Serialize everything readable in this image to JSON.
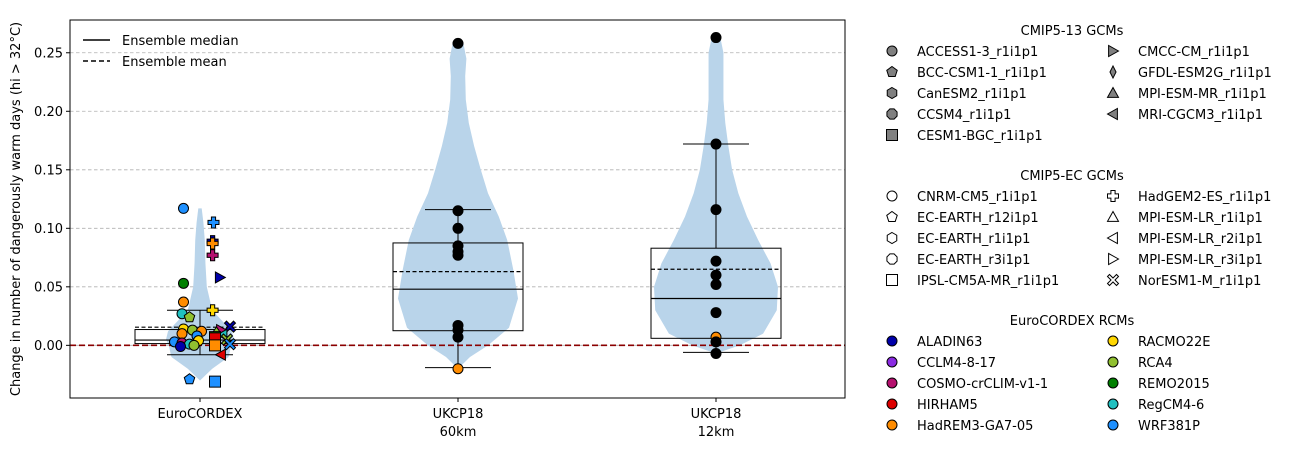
{
  "chart_data": {
    "type": "violin",
    "ylabel": "Change in number of dangerously warm days (hi > 32°C)",
    "ylim": [
      -0.045,
      0.278
    ],
    "yticks": [
      "0.00",
      "0.05",
      "0.10",
      "0.15",
      "0.20",
      "0.25"
    ],
    "ytick_values": [
      0.0,
      0.05,
      0.1,
      0.15,
      0.2,
      0.25
    ],
    "grid": "y-dashed",
    "zero_line_color": "#8b0000",
    "violin_color": "#b9d4ea",
    "categories": [
      {
        "line1": "EuroCORDEX",
        "line2": ""
      },
      {
        "line1": "UKCP18",
        "line2": "60km"
      },
      {
        "line1": "UKCP18",
        "line2": "12km"
      }
    ],
    "groups": [
      {
        "violin": [
          [
            -0.03,
            0.0
          ],
          [
            -0.02,
            0.18
          ],
          [
            -0.01,
            0.42
          ],
          [
            0.0,
            0.46
          ],
          [
            0.005,
            0.5
          ],
          [
            0.012,
            0.47
          ],
          [
            0.02,
            0.34
          ],
          [
            0.03,
            0.18
          ],
          [
            0.05,
            0.1
          ],
          [
            0.07,
            0.08
          ],
          [
            0.09,
            0.07
          ],
          [
            0.105,
            0.05
          ],
          [
            0.117,
            0.025
          ]
        ],
        "box": {
          "q1": 0.0015,
          "median": 0.0045,
          "mean": 0.0155,
          "q3": 0.0135,
          "whisker_low": -0.008,
          "whisker_high": 0.03
        },
        "points": [
          {
            "y": 0.117,
            "color": "#1e90ff",
            "marker": "circle",
            "dx": -0.55
          },
          {
            "y": 0.105,
            "color": "#1e90ff",
            "marker": "plus",
            "dx": 0.45
          },
          {
            "y": 0.089,
            "color": "#0000aa",
            "marker": "plus",
            "dx": 0.42
          },
          {
            "y": 0.087,
            "color": "#ff8c00",
            "marker": "plus",
            "dx": 0.42
          },
          {
            "y": 0.077,
            "color": "#b5106e",
            "marker": "plus",
            "dx": 0.42
          },
          {
            "y": 0.058,
            "color": "#0000aa",
            "marker": "tri-right",
            "dx": 0.66
          },
          {
            "y": 0.053,
            "color": "#008000",
            "marker": "circle",
            "dx": -0.55
          },
          {
            "y": 0.037,
            "color": "#ff8c00",
            "marker": "circle",
            "dx": -0.55
          },
          {
            "y": 0.03,
            "color": "#ffd700",
            "marker": "plus",
            "dx": 0.42
          },
          {
            "y": 0.027,
            "color": "#20c0c0",
            "marker": "circle",
            "dx": -0.6
          },
          {
            "y": 0.024,
            "color": "#90c030",
            "marker": "pentagon",
            "dx": -0.35
          },
          {
            "y": 0.016,
            "color": "#0000aa",
            "marker": "cross",
            "dx": 1.0
          },
          {
            "y": 0.014,
            "color": "#ffd700",
            "marker": "circle",
            "dx": -0.55
          },
          {
            "y": 0.013,
            "color": "#90c030",
            "marker": "circle",
            "dx": -0.25
          },
          {
            "y": 0.013,
            "color": "#b5106e",
            "marker": "tri-right",
            "dx": 0.7
          },
          {
            "y": 0.012,
            "color": "#ff8c00",
            "marker": "circle",
            "dx": 0.05
          },
          {
            "y": 0.011,
            "color": "#90c030",
            "marker": "diamond",
            "dx": 0.55
          },
          {
            "y": 0.01,
            "color": "#ff8c00",
            "marker": "circle",
            "dx": -0.6
          },
          {
            "y": 0.009,
            "color": "#20c0c0",
            "marker": "tri-left",
            "dx": 0.75
          },
          {
            "y": 0.008,
            "color": "#1e90ff",
            "marker": "circle",
            "dx": -0.1
          },
          {
            "y": 0.007,
            "color": "#008000",
            "marker": "square",
            "dx": 0.5
          },
          {
            "y": 0.006,
            "color": "#dd0000",
            "marker": "square",
            "dx": 0.5
          },
          {
            "y": 0.005,
            "color": "#90c030",
            "marker": "cross",
            "dx": 0.9
          },
          {
            "y": 0.004,
            "color": "#ffd700",
            "marker": "circle",
            "dx": -0.05
          },
          {
            "y": 0.003,
            "color": "#1e90ff",
            "marker": "circle",
            "dx": -0.85
          },
          {
            "y": 0.002,
            "color": "#b5106e",
            "marker": "circle",
            "dx": -0.6
          },
          {
            "y": 0.001,
            "color": "#20c0c0",
            "marker": "circle",
            "dx": -0.35
          },
          {
            "y": 0.001,
            "color": "#1e90ff",
            "marker": "cross",
            "dx": 1.0
          },
          {
            "y": 0.0,
            "color": "#90c030",
            "marker": "circle",
            "dx": -0.2
          },
          {
            "y": 0.0,
            "color": "#ff8c00",
            "marker": "square",
            "dx": 0.5
          },
          {
            "y": -0.001,
            "color": "#0000aa",
            "marker": "circle",
            "dx": -0.65
          },
          {
            "y": -0.008,
            "color": "#dd0000",
            "marker": "tri-left",
            "dx": 0.7
          },
          {
            "y": -0.029,
            "color": "#1e90ff",
            "marker": "pentagon",
            "dx": -0.35
          },
          {
            "y": -0.031,
            "color": "#1e90ff",
            "marker": "square",
            "dx": 0.5
          }
        ]
      },
      {
        "violin": [
          [
            -0.02,
            0.0
          ],
          [
            -0.01,
            0.2
          ],
          [
            0.0,
            0.5
          ],
          [
            0.015,
            0.85
          ],
          [
            0.04,
            1.0
          ],
          [
            0.065,
            0.92
          ],
          [
            0.09,
            0.82
          ],
          [
            0.11,
            0.68
          ],
          [
            0.13,
            0.5
          ],
          [
            0.15,
            0.38
          ],
          [
            0.17,
            0.27
          ],
          [
            0.19,
            0.18
          ],
          [
            0.21,
            0.13
          ],
          [
            0.23,
            0.12
          ],
          [
            0.245,
            0.14
          ],
          [
            0.258,
            0.09
          ]
        ],
        "box": {
          "q1": 0.0125,
          "median": 0.048,
          "mean": 0.063,
          "q3": 0.0875,
          "whisker_low": -0.019,
          "whisker_high": 0.116
        },
        "points": [
          {
            "y": 0.258,
            "color": "#000000",
            "marker": "circle",
            "dx": 0
          },
          {
            "y": 0.115,
            "color": "#000000",
            "marker": "circle",
            "dx": 0
          },
          {
            "y": 0.1,
            "color": "#000000",
            "marker": "circle",
            "dx": 0
          },
          {
            "y": 0.085,
            "color": "#000000",
            "marker": "circle",
            "dx": 0
          },
          {
            "y": 0.08,
            "color": "#000000",
            "marker": "circle",
            "dx": 0
          },
          {
            "y": 0.077,
            "color": "#000000",
            "marker": "circle",
            "dx": 0
          },
          {
            "y": 0.017,
            "color": "#000000",
            "marker": "circle",
            "dx": 0
          },
          {
            "y": 0.013,
            "color": "#000000",
            "marker": "circle",
            "dx": 0
          },
          {
            "y": 0.007,
            "color": "#000000",
            "marker": "circle",
            "dx": 0
          },
          {
            "y": -0.02,
            "color": "#ff8c00",
            "marker": "circle",
            "dx": 0
          }
        ]
      },
      {
        "violin": [
          [
            -0.007,
            0.0
          ],
          [
            0.0,
            0.38
          ],
          [
            0.01,
            0.76
          ],
          [
            0.03,
            0.98
          ],
          [
            0.05,
            1.0
          ],
          [
            0.07,
            0.88
          ],
          [
            0.09,
            0.68
          ],
          [
            0.11,
            0.5
          ],
          [
            0.13,
            0.36
          ],
          [
            0.15,
            0.26
          ],
          [
            0.17,
            0.2
          ],
          [
            0.19,
            0.15
          ],
          [
            0.21,
            0.12
          ],
          [
            0.23,
            0.12
          ],
          [
            0.25,
            0.12
          ],
          [
            0.263,
            0.07
          ]
        ],
        "box": {
          "q1": 0.006,
          "median": 0.04,
          "mean": 0.065,
          "q3": 0.083,
          "whisker_low": -0.006,
          "whisker_high": 0.172
        },
        "points": [
          {
            "y": 0.263,
            "color": "#000000",
            "marker": "circle",
            "dx": 0
          },
          {
            "y": 0.172,
            "color": "#000000",
            "marker": "circle",
            "dx": 0
          },
          {
            "y": 0.116,
            "color": "#000000",
            "marker": "circle",
            "dx": 0
          },
          {
            "y": 0.072,
            "color": "#000000",
            "marker": "circle",
            "dx": 0
          },
          {
            "y": 0.06,
            "color": "#000000",
            "marker": "circle",
            "dx": 0
          },
          {
            "y": 0.052,
            "color": "#000000",
            "marker": "circle",
            "dx": 0
          },
          {
            "y": 0.028,
            "color": "#000000",
            "marker": "circle",
            "dx": 0
          },
          {
            "y": 0.007,
            "color": "#ff8c00",
            "marker": "circle",
            "dx": 0
          },
          {
            "y": 0.003,
            "color": "#000000",
            "marker": "circle",
            "dx": 0
          },
          {
            "y": -0.007,
            "color": "#000000",
            "marker": "circle",
            "dx": 0
          }
        ]
      }
    ],
    "line_legend": [
      {
        "label": "Ensemble median",
        "style": "solid"
      },
      {
        "label": "Ensemble mean",
        "style": "dashed"
      }
    ],
    "legend_placement": "right",
    "legend_sections": [
      {
        "title": "CMIP5-13 GCMs",
        "fill": "#808080",
        "entries": [
          {
            "label": "ACCESS1-3_r1i1p1",
            "marker": "circle"
          },
          {
            "label": "BCC-CSM1-1_r1i1p1",
            "marker": "pentagon"
          },
          {
            "label": "CanESM2_r1i1p1",
            "marker": "hexagon"
          },
          {
            "label": "CCSM4_r1i1p1",
            "marker": "octagon"
          },
          {
            "label": "CESM1-BGC_r1i1p1",
            "marker": "square"
          },
          {
            "label": "CMCC-CM_r1i1p1",
            "marker": "tri-right"
          },
          {
            "label": "GFDL-ESM2G_r1i1p1",
            "marker": "thin-diamond"
          },
          {
            "label": "MPI-ESM-MR_r1i1p1",
            "marker": "tri-up"
          },
          {
            "label": "MRI-CGCM3_r1i1p1",
            "marker": "tri-left"
          }
        ]
      },
      {
        "title": "CMIP5-EC GCMs",
        "fill": "#ffffff",
        "entries": [
          {
            "label": "CNRM-CM5_r1i1p1",
            "marker": "circle"
          },
          {
            "label": "EC-EARTH_r12i1p1",
            "marker": "pentagon"
          },
          {
            "label": "EC-EARTH_r1i1p1",
            "marker": "hexagon"
          },
          {
            "label": "EC-EARTH_r3i1p1",
            "marker": "octagon"
          },
          {
            "label": "IPSL-CM5A-MR_r1i1p1",
            "marker": "square"
          },
          {
            "label": "HadGEM2-ES_r1i1p1",
            "marker": "plus"
          },
          {
            "label": "MPI-ESM-LR_r1i1p1",
            "marker": "tri-up"
          },
          {
            "label": "MPI-ESM-LR_r2i1p1",
            "marker": "tri-left"
          },
          {
            "label": "MPI-ESM-LR_r3i1p1",
            "marker": "tri-right"
          },
          {
            "label": "NorESM1-M_r1i1p1",
            "marker": "cross"
          }
        ]
      },
      {
        "title": "EuroCORDEX RCMs",
        "entries": [
          {
            "label": "ALADIN63",
            "marker": "circle",
            "fill": "#0000aa"
          },
          {
            "label": "CCLM4-8-17",
            "marker": "circle",
            "fill": "#8a2be2"
          },
          {
            "label": "COSMO-crCLIM-v1-1",
            "marker": "circle",
            "fill": "#b5106e"
          },
          {
            "label": "HIRHAM5",
            "marker": "circle",
            "fill": "#dd0000"
          },
          {
            "label": "HadREM3-GA7-05",
            "marker": "circle",
            "fill": "#ff8c00"
          },
          {
            "label": "RACMO22E",
            "marker": "circle",
            "fill": "#ffd700"
          },
          {
            "label": "RCA4",
            "marker": "circle",
            "fill": "#90c030"
          },
          {
            "label": "REMO2015",
            "marker": "circle",
            "fill": "#008000"
          },
          {
            "label": "RegCM4-6",
            "marker": "circle",
            "fill": "#20c0c0"
          },
          {
            "label": "WRF381P",
            "marker": "circle",
            "fill": "#1e90ff"
          }
        ]
      }
    ]
  }
}
